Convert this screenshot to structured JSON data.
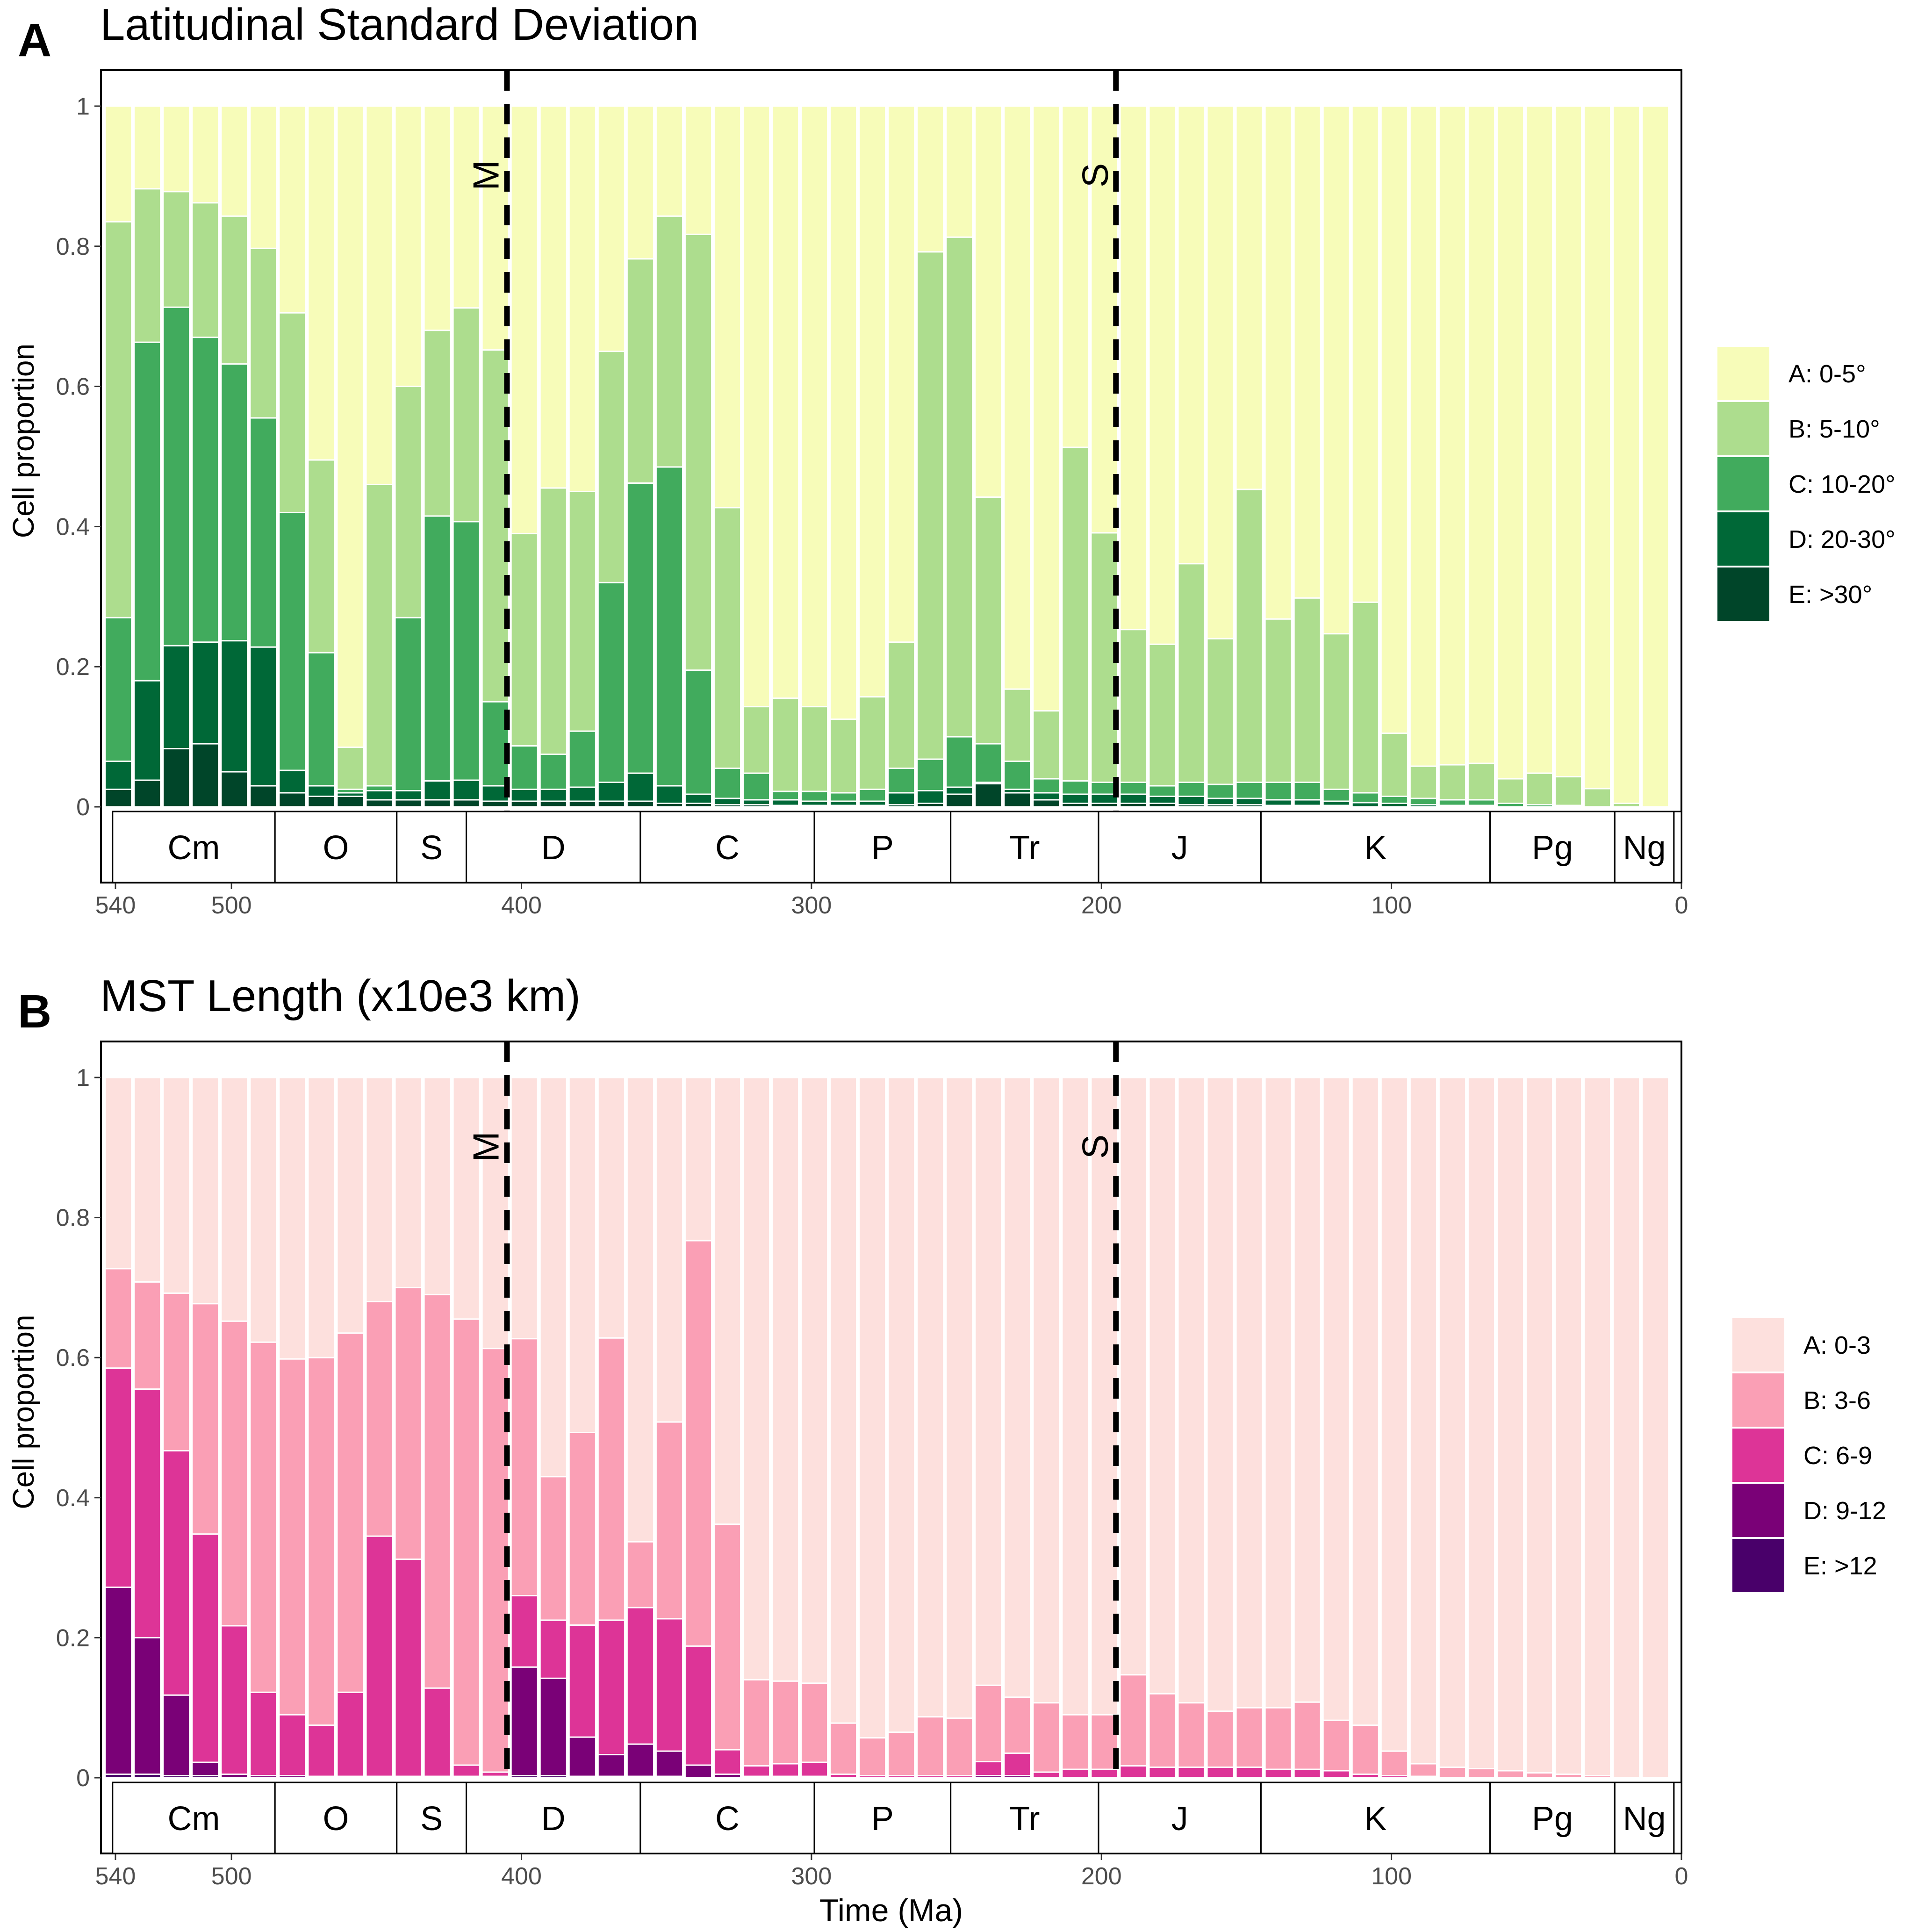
{
  "panels": [
    {
      "letter": "A",
      "title": "Latitudinal Standard Deviation",
      "ylabel": "Cell proportion",
      "xlabel": "",
      "legend": [
        {
          "label": "A: 0-5°",
          "color": "#F7FCB9"
        },
        {
          "label": "B: 5-10°",
          "color": "#ADDD8E"
        },
        {
          "label": "C: 10-20°",
          "color": "#41AB5D"
        },
        {
          "label": "D: 20-30°",
          "color": "#006837"
        },
        {
          "label": "E: >30°",
          "color": "#004529"
        }
      ]
    },
    {
      "letter": "B",
      "title": "MST Length (x10e3 km)",
      "ylabel": "Cell proportion",
      "xlabel": "Time (Ma)",
      "legend": [
        {
          "label": "A: 0-3",
          "color": "#FDE0DD"
        },
        {
          "label": "B: 3-6",
          "color": "#FA9FB5"
        },
        {
          "label": "C: 6-9",
          "color": "#DD3497"
        },
        {
          "label": "D: 9-12",
          "color": "#7A0177"
        },
        {
          "label": "E: >12",
          "color": "#49006A"
        }
      ]
    }
  ],
  "events": [
    {
      "label": "M",
      "time": 405
    },
    {
      "label": "S",
      "time": 195
    }
  ],
  "periods": [
    {
      "label": "Cm",
      "start": 541,
      "end": 485
    },
    {
      "label": "O",
      "start": 485,
      "end": 443
    },
    {
      "label": "S",
      "start": 443,
      "end": 419
    },
    {
      "label": "D",
      "start": 419,
      "end": 359
    },
    {
      "label": "C",
      "start": 359,
      "end": 299
    },
    {
      "label": "P",
      "start": 299,
      "end": 252
    },
    {
      "label": "Tr",
      "start": 252,
      "end": 201
    },
    {
      "label": "J",
      "start": 201,
      "end": 145
    },
    {
      "label": "K",
      "start": 145,
      "end": 66
    },
    {
      "label": "Pg",
      "start": 66,
      "end": 23
    },
    {
      "label": "Ng",
      "start": 23,
      "end": 2.6
    },
    {
      "label": "",
      "start": 2.6,
      "end": 0
    }
  ],
  "chart_data": [
    {
      "type": "bar",
      "stacked": true,
      "title": "Latitudinal Standard Deviation",
      "xlabel": "",
      "ylabel": "Cell proportion",
      "xlim": [
        545,
        0
      ],
      "ylim": [
        0,
        1
      ],
      "x_ticks": [
        540,
        500,
        400,
        300,
        200,
        100,
        0
      ],
      "y_ticks": [
        0,
        0.2,
        0.4,
        0.6,
        0.8,
        1
      ],
      "y_tick_labels": [
        "0",
        "0.2",
        "0.4",
        "0.6",
        "0.8",
        "1"
      ],
      "legend_position": "right",
      "x": [
        539,
        529,
        519,
        509,
        499,
        489,
        479,
        469,
        459,
        449,
        439,
        429,
        419,
        409,
        399,
        389,
        379,
        369,
        359,
        349,
        339,
        329,
        319,
        309,
        299,
        289,
        279,
        269,
        259,
        249,
        239,
        229,
        219,
        209,
        199,
        189,
        179,
        169,
        159,
        149,
        139,
        129,
        119,
        109,
        99,
        89,
        79,
        69,
        59,
        49,
        39,
        29,
        19,
        9
      ],
      "cumulative": {
        "B_top": [
          0.835,
          0.882,
          0.878,
          0.862,
          0.843,
          0.797,
          0.705,
          0.495,
          0.085,
          0.46,
          0.6,
          0.68,
          0.712,
          0.652,
          0.39,
          0.455,
          0.45,
          0.65,
          0.782,
          0.843,
          0.817,
          0.427,
          0.143,
          0.155,
          0.143,
          0.125,
          0.157,
          0.235,
          0.792,
          0.813,
          0.442,
          0.168,
          0.137,
          0.513,
          0.391,
          0.253,
          0.232,
          0.347,
          0.24,
          0.453,
          0.268,
          0.298,
          0.247,
          0.292,
          0.105,
          0.058,
          0.06,
          0.062,
          0.04,
          0.048,
          0.043,
          0.026,
          0.005,
          0.0
        ],
        "C_top": [
          0.27,
          0.663,
          0.713,
          0.67,
          0.632,
          0.555,
          0.42,
          0.22,
          0.025,
          0.03,
          0.27,
          0.415,
          0.407,
          0.15,
          0.087,
          0.075,
          0.108,
          0.32,
          0.462,
          0.485,
          0.195,
          0.055,
          0.048,
          0.022,
          0.022,
          0.02,
          0.025,
          0.055,
          0.068,
          0.1,
          0.09,
          0.065,
          0.04,
          0.037,
          0.035,
          0.035,
          0.03,
          0.035,
          0.032,
          0.035,
          0.035,
          0.035,
          0.025,
          0.02,
          0.015,
          0.012,
          0.01,
          0.01,
          0.005,
          0.003,
          0.002,
          0.0,
          0.0,
          0.0
        ],
        "D_top": [
          0.065,
          0.18,
          0.23,
          0.235,
          0.237,
          0.228,
          0.052,
          0.03,
          0.02,
          0.023,
          0.023,
          0.037,
          0.038,
          0.03,
          0.025,
          0.025,
          0.028,
          0.035,
          0.048,
          0.03,
          0.018,
          0.012,
          0.01,
          0.01,
          0.008,
          0.008,
          0.008,
          0.02,
          0.023,
          0.028,
          0.035,
          0.025,
          0.02,
          0.018,
          0.018,
          0.018,
          0.015,
          0.015,
          0.012,
          0.012,
          0.01,
          0.01,
          0.008,
          0.006,
          0.005,
          0.003,
          0.002,
          0.002,
          0.0,
          0.0,
          0.0,
          0.0,
          0.0,
          0.0
        ],
        "E_top": [
          0.025,
          0.038,
          0.083,
          0.09,
          0.05,
          0.03,
          0.02,
          0.015,
          0.015,
          0.01,
          0.01,
          0.01,
          0.01,
          0.008,
          0.008,
          0.008,
          0.008,
          0.008,
          0.008,
          0.005,
          0.005,
          0.003,
          0.003,
          0.002,
          0.002,
          0.002,
          0.002,
          0.003,
          0.005,
          0.018,
          0.033,
          0.02,
          0.01,
          0.005,
          0.005,
          0.005,
          0.005,
          0.003,
          0.003,
          0.003,
          0.002,
          0.002,
          0.002,
          0.0,
          0.0,
          0.0,
          0.0,
          0.0,
          0.0,
          0.0,
          0.0,
          0.0,
          0.0,
          0.0
        ]
      }
    },
    {
      "type": "bar",
      "stacked": true,
      "title": "MST Length (x10e3 km)",
      "xlabel": "Time (Ma)",
      "ylabel": "Cell proportion",
      "xlim": [
        545,
        0
      ],
      "ylim": [
        0,
        1
      ],
      "x_ticks": [
        540,
        500,
        400,
        300,
        200,
        100,
        0
      ],
      "y_ticks": [
        0,
        0.2,
        0.4,
        0.6,
        0.8,
        1
      ],
      "y_tick_labels": [
        "0",
        "0.2",
        "0.4",
        "0.6",
        "0.8",
        "1"
      ],
      "legend_position": "right",
      "x": [
        539,
        529,
        519,
        509,
        499,
        489,
        479,
        469,
        459,
        449,
        439,
        429,
        419,
        409,
        399,
        389,
        379,
        369,
        359,
        349,
        339,
        329,
        319,
        309,
        299,
        289,
        279,
        269,
        259,
        249,
        239,
        229,
        219,
        209,
        199,
        189,
        179,
        169,
        159,
        149,
        139,
        129,
        119,
        109,
        99,
        89,
        79,
        69,
        59,
        49,
        39,
        29,
        19,
        9
      ],
      "cumulative": {
        "B_top": [
          0.727,
          0.708,
          0.692,
          0.677,
          0.652,
          0.622,
          0.598,
          0.6,
          0.635,
          0.68,
          0.7,
          0.69,
          0.655,
          0.613,
          0.627,
          0.43,
          0.493,
          0.628,
          0.337,
          0.508,
          0.767,
          0.362,
          0.14,
          0.138,
          0.135,
          0.078,
          0.057,
          0.065,
          0.087,
          0.085,
          0.132,
          0.115,
          0.107,
          0.09,
          0.09,
          0.147,
          0.12,
          0.107,
          0.095,
          0.1,
          0.1,
          0.108,
          0.082,
          0.075,
          0.038,
          0.02,
          0.015,
          0.013,
          0.01,
          0.007,
          0.005,
          0.003,
          0.0,
          0.0
        ],
        "C_top": [
          0.585,
          0.555,
          0.467,
          0.348,
          0.217,
          0.122,
          0.09,
          0.075,
          0.122,
          0.345,
          0.312,
          0.128,
          0.018,
          0.008,
          0.26,
          0.225,
          0.218,
          0.225,
          0.243,
          0.227,
          0.188,
          0.04,
          0.017,
          0.02,
          0.022,
          0.005,
          0.003,
          0.003,
          0.003,
          0.003,
          0.023,
          0.035,
          0.008,
          0.012,
          0.012,
          0.017,
          0.015,
          0.015,
          0.015,
          0.015,
          0.012,
          0.012,
          0.01,
          0.005,
          0.003,
          0.002,
          0.0,
          0.0,
          0.0,
          0.0,
          0.0,
          0.0,
          0.0,
          0.0
        ],
        "D_top": [
          0.272,
          0.2,
          0.118,
          0.022,
          0.005,
          0.003,
          0.003,
          0.002,
          0.002,
          0.002,
          0.002,
          0.002,
          0.002,
          0.002,
          0.158,
          0.142,
          0.058,
          0.033,
          0.048,
          0.038,
          0.018,
          0.005,
          0.002,
          0.002,
          0.002,
          0.0,
          0.0,
          0.0,
          0.0,
          0.0,
          0.003,
          0.003,
          0.0,
          0.0,
          0.0,
          0.0,
          0.0,
          0.0,
          0.0,
          0.0,
          0.0,
          0.0,
          0.0,
          0.0,
          0.0,
          0.0,
          0.0,
          0.0,
          0.0,
          0.0,
          0.0,
          0.0,
          0.0,
          0.0
        ],
        "E_top": [
          0.005,
          0.005,
          0.003,
          0.003,
          0.0,
          0.0,
          0.0,
          0.0,
          0.0,
          0.0,
          0.0,
          0.0,
          0.0,
          0.0,
          0.003,
          0.003,
          0.002,
          0.002,
          0.002,
          0.002,
          0.0,
          0.0,
          0.0,
          0.0,
          0.0,
          0.0,
          0.0,
          0.0,
          0.0,
          0.0,
          0.0,
          0.0,
          0.0,
          0.0,
          0.0,
          0.0,
          0.0,
          0.0,
          0.0,
          0.0,
          0.0,
          0.0,
          0.0,
          0.0,
          0.0,
          0.0,
          0.0,
          0.0,
          0.0,
          0.0,
          0.0,
          0.0,
          0.0,
          0.0
        ]
      }
    }
  ]
}
